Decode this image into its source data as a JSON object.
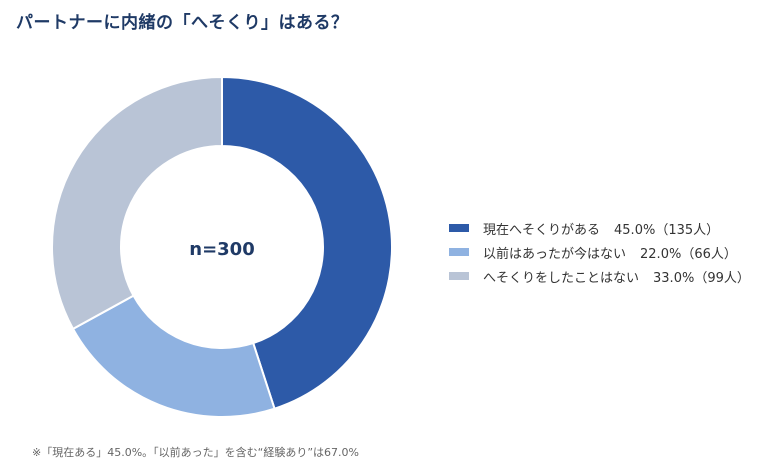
{
  "title": "パートナーに内緒の「へそくり」はある？",
  "note": "※「現在ある」45.0%。「以前あった」を含む“経験あり”は67.0%",
  "colors": {
    "title": "#1f3a66",
    "background": "#ffffff",
    "separator": "#ffffff"
  },
  "chart_data": {
    "type": "pie",
    "style": "donut",
    "center_label": "n=300",
    "legend_position": "right",
    "slices": [
      {
        "label": "現在へそくりがある",
        "value": 45.0,
        "count": 135,
        "value_text": "45.0%（135人）",
        "color": "#2d5aa8"
      },
      {
        "label": "以前はあったが今はない",
        "value": 22.0,
        "count": 66,
        "value_text": "22.0%（66人）",
        "color": "#8fb2e1"
      },
      {
        "label": "へそくりをしたことはない",
        "value": 33.0,
        "count": 99,
        "value_text": "33.0%（99人）",
        "color": "#b9c4d6"
      }
    ]
  }
}
